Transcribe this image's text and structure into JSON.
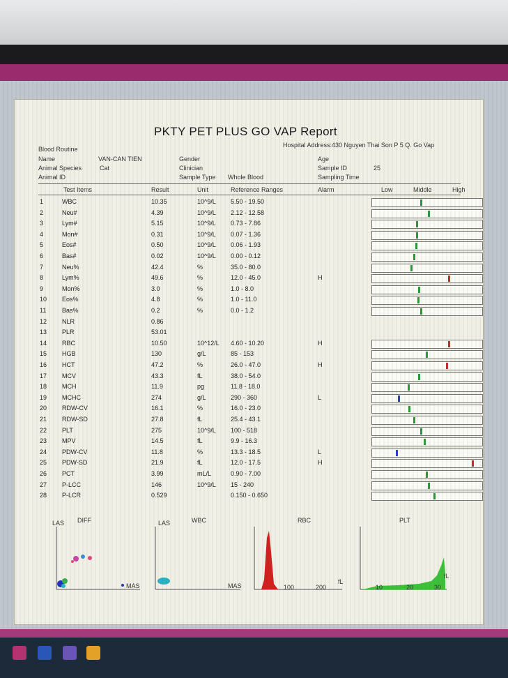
{
  "report": {
    "title": "PKTY PET PLUS GO VAP Report",
    "hospital_address": "Hospital Address:430 Nguyen Thai Son P 5 Q. Go Vap",
    "section": "Blood Routine",
    "name_label": "Name",
    "name_value": "VAN-CAN TIEN",
    "species_label": "Animal Species",
    "species_value": "Cat",
    "animal_id_label": "Animal ID",
    "gender_label": "Gender",
    "clinician_label": "Clinician",
    "sample_type_label": "Sample Type",
    "sample_type_value": "Whole Blood",
    "age_label": "Age",
    "sample_id_label": "Sample ID",
    "sample_id_value": "25",
    "sampling_time_label": "Sampling Time",
    "columns": {
      "test_items": "Test Items",
      "result": "Result",
      "unit": "Unit",
      "reference_ranges": "Reference Ranges",
      "alarm": "Alarm",
      "low": "Low",
      "middle": "Middle",
      "high": "High"
    },
    "rows": [
      {
        "no": "1",
        "item": "WBC",
        "result": "10.35",
        "unit": "10^9/L",
        "ref": "5.50 - 19.50",
        "alarm": "",
        "pos": 0.45,
        "color": "#2a9a3a"
      },
      {
        "no": "2",
        "item": "Neu#",
        "result": "4.39",
        "unit": "10^9/L",
        "ref": "2.12 - 12.58",
        "alarm": "",
        "pos": 0.52,
        "color": "#2a9a3a"
      },
      {
        "no": "3",
        "item": "Lym#",
        "result": "5.15",
        "unit": "10^9/L",
        "ref": "0.73 - 7.86",
        "alarm": "",
        "pos": 0.41,
        "color": "#2a9a3a"
      },
      {
        "no": "4",
        "item": "Mon#",
        "result": "0.31",
        "unit": "10^9/L",
        "ref": "0.07 - 1.36",
        "alarm": "",
        "pos": 0.41,
        "color": "#2a9a3a"
      },
      {
        "no": "5",
        "item": "Eos#",
        "result": "0.50",
        "unit": "10^9/L",
        "ref": "0.06 - 1.93",
        "alarm": "",
        "pos": 0.4,
        "color": "#2a9a3a"
      },
      {
        "no": "6",
        "item": "Bas#",
        "result": "0.02",
        "unit": "10^9/L",
        "ref": "0.00 - 0.12",
        "alarm": "",
        "pos": 0.38,
        "color": "#2a9a3a"
      },
      {
        "no": "7",
        "item": "Neu%",
        "result": "42.4",
        "unit": "%",
        "ref": "35.0 - 80.0",
        "alarm": "",
        "pos": 0.36,
        "color": "#2a9a3a"
      },
      {
        "no": "8",
        "item": "Lym%",
        "result": "49.6",
        "unit": "%",
        "ref": "12.0 - 45.0",
        "alarm": "H",
        "pos": 0.71,
        "color": "#c0302c"
      },
      {
        "no": "9",
        "item": "Mon%",
        "result": "3.0",
        "unit": "%",
        "ref": "1.0 - 8.0",
        "alarm": "",
        "pos": 0.43,
        "color": "#2a9a3a"
      },
      {
        "no": "10",
        "item": "Eos%",
        "result": "4.8",
        "unit": "%",
        "ref": "1.0 - 11.0",
        "alarm": "",
        "pos": 0.42,
        "color": "#2a9a3a"
      },
      {
        "no": "11",
        "item": "Bas%",
        "result": "0.2",
        "unit": "%",
        "ref": "0.0 - 1.2",
        "alarm": "",
        "pos": 0.45,
        "color": "#2a9a3a"
      },
      {
        "no": "12",
        "item": "NLR",
        "result": "0.86",
        "unit": "",
        "ref": "",
        "alarm": "",
        "pos": null,
        "color": ""
      },
      {
        "no": "13",
        "item": "PLR",
        "result": "53.01",
        "unit": "",
        "ref": "",
        "alarm": "",
        "pos": null,
        "color": ""
      },
      {
        "no": "14",
        "item": "RBC",
        "result": "10.50",
        "unit": "10^12/L",
        "ref": "4.60 - 10.20",
        "alarm": "H",
        "pos": 0.71,
        "color": "#c0302c"
      },
      {
        "no": "15",
        "item": "HGB",
        "result": "130",
        "unit": "g/L",
        "ref": "85 - 153",
        "alarm": "",
        "pos": 0.5,
        "color": "#2a9a3a"
      },
      {
        "no": "16",
        "item": "HCT",
        "result": "47.2",
        "unit": "%",
        "ref": "26.0 - 47.0",
        "alarm": "H",
        "pos": 0.69,
        "color": "#c0302c"
      },
      {
        "no": "17",
        "item": "MCV",
        "result": "43.3",
        "unit": "fL",
        "ref": "38.0 - 54.0",
        "alarm": "",
        "pos": 0.43,
        "color": "#2a9a3a"
      },
      {
        "no": "18",
        "item": "MCH",
        "result": "11.9",
        "unit": "pg",
        "ref": "11.8 - 18.0",
        "alarm": "",
        "pos": 0.33,
        "color": "#2a9a3a"
      },
      {
        "no": "19",
        "item": "MCHC",
        "result": "274",
        "unit": "g/L",
        "ref": "290 - 360",
        "alarm": "L",
        "pos": 0.24,
        "color": "#2c3fc0"
      },
      {
        "no": "20",
        "item": "RDW-CV",
        "result": "16.1",
        "unit": "%",
        "ref": "16.0 - 23.0",
        "alarm": "",
        "pos": 0.34,
        "color": "#2a9a3a"
      },
      {
        "no": "21",
        "item": "RDW-SD",
        "result": "27.8",
        "unit": "fL",
        "ref": "25.4 - 43.1",
        "alarm": "",
        "pos": 0.38,
        "color": "#2a9a3a"
      },
      {
        "no": "22",
        "item": "PLT",
        "result": "275",
        "unit": "10^9/L",
        "ref": "100 - 518",
        "alarm": "",
        "pos": 0.45,
        "color": "#2a9a3a"
      },
      {
        "no": "23",
        "item": "MPV",
        "result": "14.5",
        "unit": "fL",
        "ref": "9.9 - 16.3",
        "alarm": "",
        "pos": 0.48,
        "color": "#2a9a3a"
      },
      {
        "no": "24",
        "item": "PDW-CV",
        "result": "11.8",
        "unit": "%",
        "ref": "13.3 - 18.5",
        "alarm": "L",
        "pos": 0.22,
        "color": "#2c3fc0"
      },
      {
        "no": "25",
        "item": "PDW-SD",
        "result": "21.9",
        "unit": "fL",
        "ref": "12.0 - 17.5",
        "alarm": "H",
        "pos": 0.93,
        "color": "#c0302c"
      },
      {
        "no": "26",
        "item": "PCT",
        "result": "3.99",
        "unit": "mL/L",
        "ref": "0.90 - 7.00",
        "alarm": "",
        "pos": 0.5,
        "color": "#2a9a3a"
      },
      {
        "no": "27",
        "item": "P-LCC",
        "result": "146",
        "unit": "10^9/L",
        "ref": "15 - 240",
        "alarm": "",
        "pos": 0.52,
        "color": "#2a9a3a"
      },
      {
        "no": "28",
        "item": "P-LCR",
        "result": "0.529",
        "unit": "",
        "ref": "0.150 - 0.650",
        "alarm": "",
        "pos": 0.57,
        "color": "#2a9a3a"
      }
    ],
    "histograms": {
      "diff_title": "DIFF",
      "diff_ylabel": "LAS",
      "diff_xlabel": "MAS",
      "baso_ylabel": "LAS",
      "baso_title": "WBC",
      "baso_xlabel": "MAS",
      "rbc_title": "RBC",
      "rbc_xlabel": "fL",
      "rbc_ticks": [
        "100",
        "200"
      ],
      "plt_title": "PLT",
      "plt_xlabel": "fL",
      "plt_ticks": [
        "10",
        "20",
        "30"
      ]
    }
  }
}
